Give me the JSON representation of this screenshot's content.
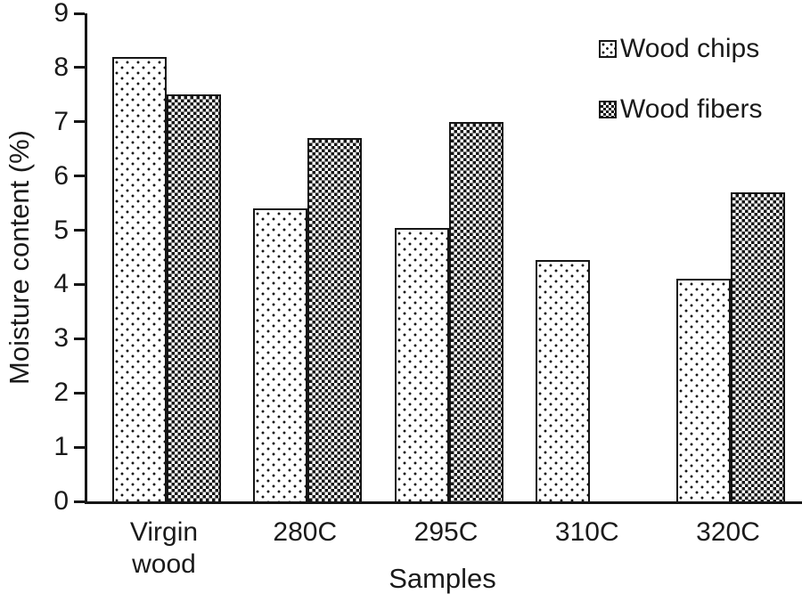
{
  "chart_data": {
    "type": "bar",
    "title": "",
    "xlabel": "Samples",
    "ylabel": "Moisture content (%)",
    "categories": [
      "Virgin wood",
      "280C",
      "295C",
      "310C",
      "320C"
    ],
    "series": [
      {
        "name": "Wood chips",
        "pattern": "dots",
        "values": [
          8.2,
          5.4,
          5.05,
          4.45,
          4.1
        ]
      },
      {
        "name": "Wood fibers",
        "pattern": "checker",
        "values": [
          7.5,
          6.7,
          7.0,
          null,
          5.7
        ]
      }
    ],
    "ylim": [
      0,
      9
    ],
    "y_ticks": [
      0,
      1,
      2,
      3,
      4,
      5,
      6,
      7,
      8,
      9
    ],
    "grid": false,
    "legend_position": "top-right",
    "bar_fill": "#ffffff",
    "border_color": "#161616"
  }
}
